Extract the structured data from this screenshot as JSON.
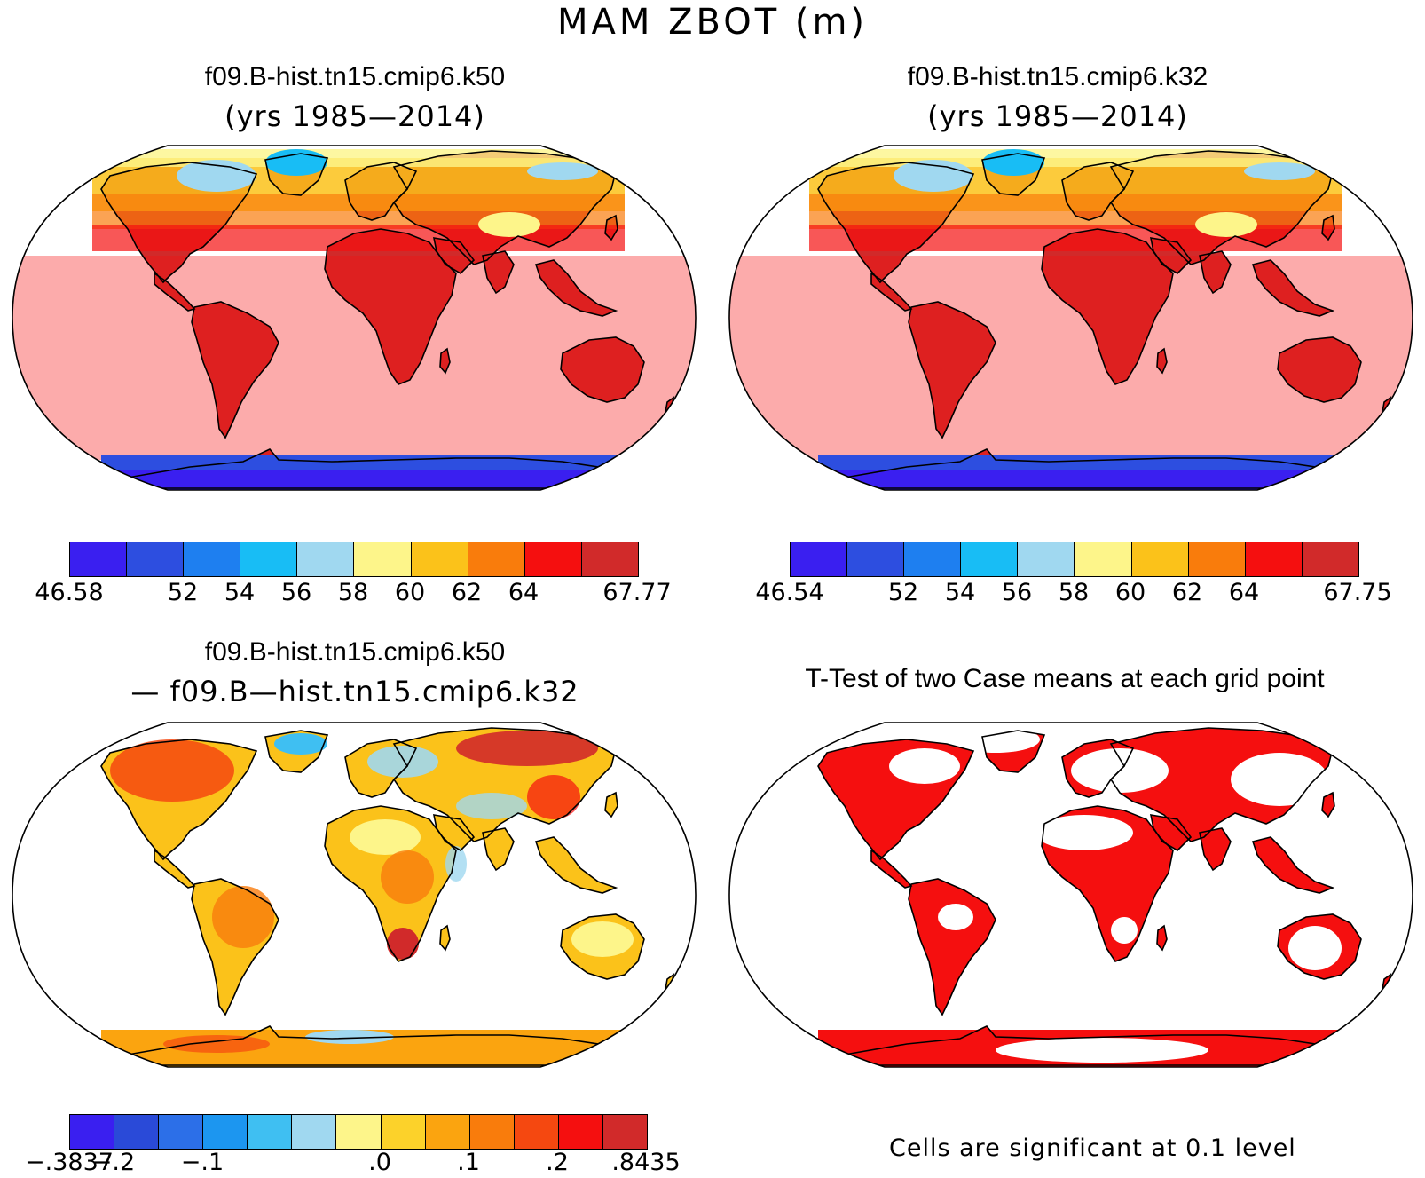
{
  "title": "MAM  ZBOT (m)",
  "panels": {
    "a": {
      "title": "f09.B-hist.tn15.cmip6.k50",
      "subtitle": "(yrs 1985—2014)"
    },
    "b": {
      "title": "f09.B-hist.tn15.cmip6.k32",
      "subtitle": "(yrs 1985—2014)"
    },
    "c": {
      "title": "f09.B-hist.tn15.cmip6.k50",
      "subtitle": "— f09.B—hist.tn15.cmip6.k32"
    },
    "d": {
      "title": "T-Test of two Case means at each grid point",
      "note": "Cells are significant at 0.1 level"
    }
  },
  "colorbars": {
    "a": {
      "colors": [
        "#3a1ff0",
        "#2d4ee0",
        "#1e7ff0",
        "#18bdf5",
        "#a0d8f0",
        "#fdf58a",
        "#fbc21a",
        "#f97c0c",
        "#f50f0f",
        "#d12a2a"
      ],
      "labels": [
        "46.58",
        "",
        "52",
        "54",
        "56",
        "58",
        "60",
        "62",
        "64",
        "",
        "67.77"
      ]
    },
    "b": {
      "colors": [
        "#3a1ff0",
        "#2d4ee0",
        "#1e7ff0",
        "#18bdf5",
        "#a0d8f0",
        "#fdf58a",
        "#fbc21a",
        "#f97c0c",
        "#f50f0f",
        "#d12a2a"
      ],
      "labels": [
        "46.54",
        "",
        "52",
        "54",
        "56",
        "58",
        "60",
        "62",
        "64",
        "",
        "67.75"
      ]
    },
    "c": {
      "colors": [
        "#3a1ff0",
        "#2a4ad8",
        "#2c6fe8",
        "#1c96f0",
        "#3fbff2",
        "#a0d8f0",
        "#fdf58a",
        "#fcd22a",
        "#fba40f",
        "#f97c0c",
        "#f54810",
        "#f50f0f",
        "#d12a2a"
      ],
      "labels": [
        "−.3837",
        "−.2",
        "",
        "−.1",
        "",
        "",
        "",
        ".0",
        "",
        ".1",
        "",
        ".2",
        "",
        ".8435"
      ]
    }
  },
  "colors": {
    "land_outline": "#000000",
    "warm": "#f50f0f",
    "deep_warm": "#d12a2a",
    "cold": "#3a1ff0",
    "significant": "#f50f0f"
  }
}
